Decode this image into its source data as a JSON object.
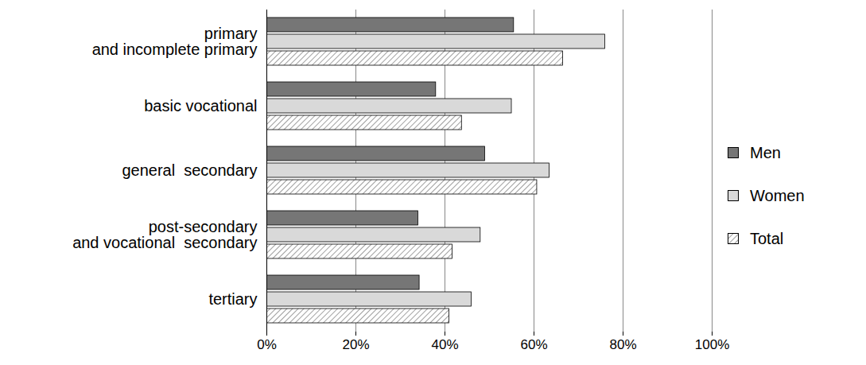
{
  "chart_data": {
    "type": "bar",
    "orientation": "horizontal",
    "grid": true,
    "legend": "right",
    "categories": [
      "primary\nand incomplete primary",
      "basic vocational",
      "general  secondary",
      "post-secondary\nand vocational  secondary",
      "tertiary"
    ],
    "series": [
      {
        "name": "Men",
        "color": "#767676",
        "values": [
          55.5,
          38,
          49,
          34,
          34.3
        ]
      },
      {
        "name": "Women",
        "color": "#d9d9d9",
        "values": [
          76,
          55,
          63.5,
          48,
          46
        ]
      },
      {
        "name": "Total",
        "color": "#808080",
        "line_style": "hatched",
        "values": [
          66.5,
          43.8,
          60.7,
          41.7,
          41
        ]
      }
    ],
    "xlim": [
      0,
      100
    ],
    "xticks": [
      {
        "value": 0,
        "label": "0%"
      },
      {
        "value": 20,
        "label": "20%"
      },
      {
        "value": 40,
        "label": "40%"
      },
      {
        "value": 60,
        "label": "60%"
      },
      {
        "value": 80,
        "label": "80%"
      },
      {
        "value": 100,
        "label": "100%"
      }
    ]
  }
}
